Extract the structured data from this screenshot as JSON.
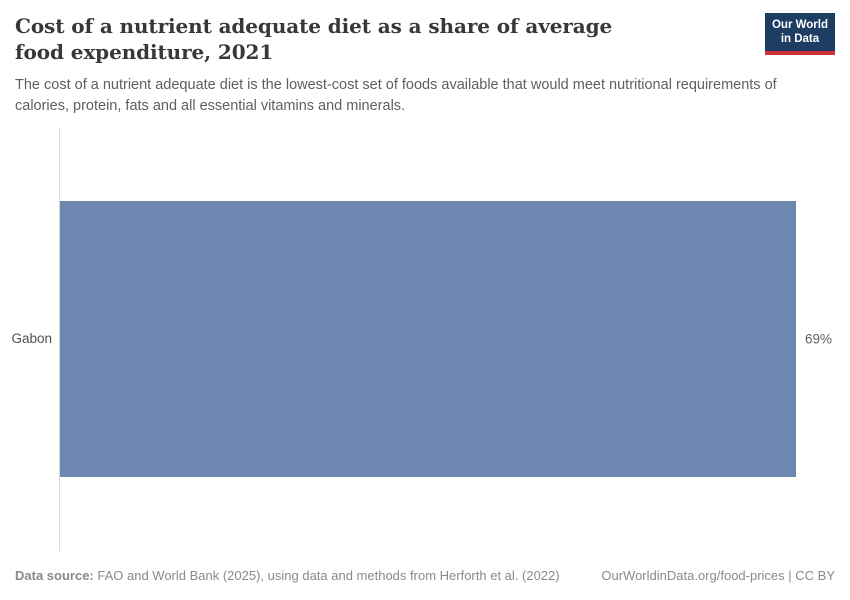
{
  "header": {
    "title": "Cost of a nutrient adequate diet as a share of average food expenditure, 2021",
    "subtitle": "The cost of a nutrient adequate diet is the lowest-cost set of foods available that would meet nutritional requirements of calories, protein, fats and all essential vitamins and minerals.",
    "logo": {
      "line1": "Our World",
      "line2": "in Data",
      "background_color": "#1d3d63",
      "underline_color": "#cf3235"
    }
  },
  "chart_data": {
    "type": "bar",
    "orientation": "horizontal",
    "title": "Cost of a nutrient adequate diet as a share of average food expenditure, 2021",
    "categories": [
      "Gabon"
    ],
    "values": [
      69
    ],
    "value_labels": [
      "69%"
    ],
    "xlabel": "",
    "ylabel": "",
    "xlim": [
      0,
      69
    ],
    "grid": false,
    "legend": false,
    "bar_color": "#6e87b0",
    "axis_line_color": "#d9d9d9"
  },
  "footer": {
    "data_source_label": "Data source:",
    "data_source_text": " FAO and World Bank (2025), using data and methods from Herforth et al. (2022)",
    "rights": "OurWorldinData.org/food-prices | CC BY"
  }
}
